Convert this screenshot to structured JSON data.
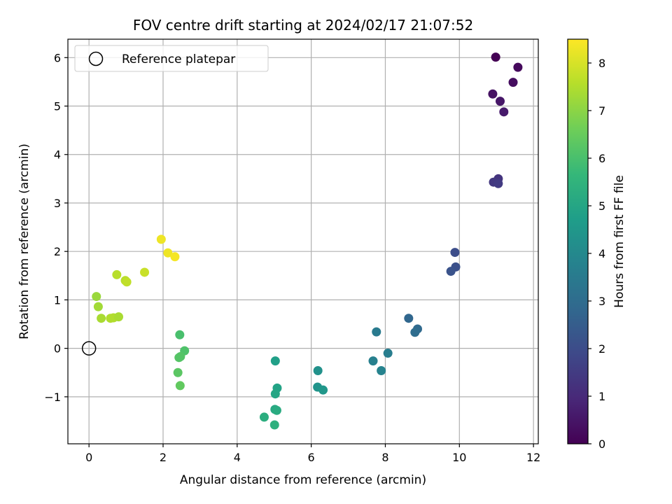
{
  "chart_data": {
    "type": "scatter",
    "title": "FOV centre drift starting at 2024/02/17 21:07:52",
    "xlabel": "Angular distance from reference (arcmin)",
    "ylabel": "Rotation from reference (arcmin)",
    "xlim": [
      -0.57,
      12.13
    ],
    "ylim": [
      -1.97,
      6.38
    ],
    "xticks": [
      0,
      2,
      4,
      6,
      8,
      10,
      12
    ],
    "xtick_labels": [
      "0",
      "2",
      "4",
      "6",
      "8",
      "10",
      "12"
    ],
    "yticks": [
      -1,
      0,
      1,
      2,
      3,
      4,
      5,
      6
    ],
    "ytick_labels": [
      "−1",
      "0",
      "1",
      "2",
      "3",
      "4",
      "5",
      "6"
    ],
    "grid": true,
    "legend": {
      "placement": "top-left",
      "entries": [
        {
          "label": "Reference platepar",
          "marker": "open-circle"
        }
      ]
    },
    "reference_point": {
      "x": 0,
      "y": 0
    },
    "colorbar": {
      "label": "Hours from first FF file",
      "colormap": "viridis",
      "range": [
        0,
        8.5
      ],
      "ticks": [
        0,
        1,
        2,
        3,
        4,
        5,
        6,
        7,
        8
      ],
      "tick_labels": [
        "0",
        "1",
        "2",
        "3",
        "4",
        "5",
        "6",
        "7",
        "8"
      ]
    },
    "points": [
      {
        "x": 10.98,
        "y": 6.01,
        "hours": 0.0
      },
      {
        "x": 11.58,
        "y": 5.8,
        "hours": 0.2
      },
      {
        "x": 11.45,
        "y": 5.49,
        "hours": 0.3
      },
      {
        "x": 10.9,
        "y": 5.25,
        "hours": 0.4
      },
      {
        "x": 11.1,
        "y": 5.1,
        "hours": 0.5
      },
      {
        "x": 11.2,
        "y": 4.88,
        "hours": 0.6
      },
      {
        "x": 11.05,
        "y": 3.5,
        "hours": 1.3
      },
      {
        "x": 10.92,
        "y": 3.43,
        "hours": 1.4
      },
      {
        "x": 11.05,
        "y": 3.4,
        "hours": 1.5
      },
      {
        "x": 9.88,
        "y": 1.98,
        "hours": 2.0
      },
      {
        "x": 9.9,
        "y": 1.68,
        "hours": 2.1
      },
      {
        "x": 9.77,
        "y": 1.59,
        "hours": 2.2
      },
      {
        "x": 8.63,
        "y": 0.62,
        "hours": 2.8
      },
      {
        "x": 8.87,
        "y": 0.4,
        "hours": 2.9
      },
      {
        "x": 8.8,
        "y": 0.33,
        "hours": 3.0
      },
      {
        "x": 7.76,
        "y": 0.34,
        "hours": 3.5
      },
      {
        "x": 8.07,
        "y": -0.1,
        "hours": 3.6
      },
      {
        "x": 7.67,
        "y": -0.26,
        "hours": 3.7
      },
      {
        "x": 7.89,
        "y": -0.46,
        "hours": 3.8
      },
      {
        "x": 6.18,
        "y": -0.46,
        "hours": 4.3
      },
      {
        "x": 6.17,
        "y": -0.8,
        "hours": 4.4
      },
      {
        "x": 6.32,
        "y": -0.86,
        "hours": 4.5
      },
      {
        "x": 5.03,
        "y": -0.26,
        "hours": 4.8
      },
      {
        "x": 5.08,
        "y": -0.82,
        "hours": 4.9
      },
      {
        "x": 5.03,
        "y": -0.94,
        "hours": 5.0
      },
      {
        "x": 5.02,
        "y": -1.26,
        "hours": 5.1
      },
      {
        "x": 5.07,
        "y": -1.28,
        "hours": 5.2
      },
      {
        "x": 4.73,
        "y": -1.42,
        "hours": 5.3
      },
      {
        "x": 5.01,
        "y": -1.58,
        "hours": 5.4
      },
      {
        "x": 2.45,
        "y": 0.28,
        "hours": 6.0
      },
      {
        "x": 2.58,
        "y": -0.05,
        "hours": 6.1
      },
      {
        "x": 2.47,
        "y": -0.17,
        "hours": 6.2
      },
      {
        "x": 2.43,
        "y": -0.19,
        "hours": 6.2
      },
      {
        "x": 2.4,
        "y": -0.5,
        "hours": 6.3
      },
      {
        "x": 2.46,
        "y": -0.77,
        "hours": 6.4
      },
      {
        "x": 0.2,
        "y": 1.07,
        "hours": 7.2
      },
      {
        "x": 0.25,
        "y": 0.86,
        "hours": 7.3
      },
      {
        "x": 0.33,
        "y": 0.62,
        "hours": 7.4
      },
      {
        "x": 0.58,
        "y": 0.62,
        "hours": 7.5
      },
      {
        "x": 0.66,
        "y": 0.63,
        "hours": 7.5
      },
      {
        "x": 0.8,
        "y": 0.65,
        "hours": 7.4
      },
      {
        "x": 0.75,
        "y": 1.52,
        "hours": 7.6
      },
      {
        "x": 0.98,
        "y": 1.4,
        "hours": 7.6
      },
      {
        "x": 1.02,
        "y": 1.37,
        "hours": 7.7
      },
      {
        "x": 1.5,
        "y": 1.57,
        "hours": 7.8
      },
      {
        "x": 1.95,
        "y": 2.25,
        "hours": 8.3
      },
      {
        "x": 2.13,
        "y": 1.97,
        "hours": 8.3
      },
      {
        "x": 2.32,
        "y": 1.89,
        "hours": 8.4
      }
    ]
  },
  "colors": {
    "axes": "#000000",
    "grid": "#b0b0b0",
    "background": "#ffffff",
    "viridis": [
      "#440154",
      "#482878",
      "#3e4989",
      "#31688e",
      "#26828e",
      "#1f9e89",
      "#35b779",
      "#6ece58",
      "#b5de2b",
      "#fde725"
    ]
  }
}
